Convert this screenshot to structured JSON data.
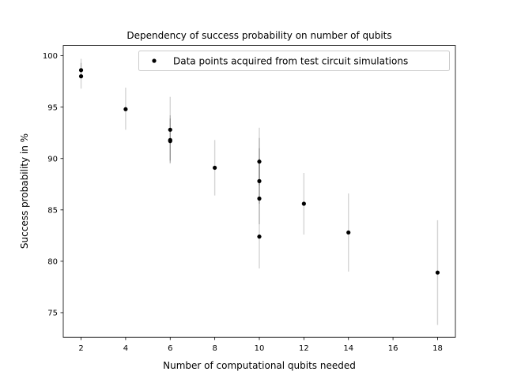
{
  "chart_data": {
    "type": "scatter",
    "title": "Dependency of success probability on number of qubits",
    "xlabel": "Number of computational qubits needed",
    "ylabel": "Success probability in %",
    "xlim": [
      1.2,
      18.8
    ],
    "ylim": [
      72.6,
      101.0
    ],
    "xticks": [
      2,
      4,
      6,
      8,
      10,
      12,
      14,
      16,
      18
    ],
    "yticks": [
      75,
      80,
      85,
      90,
      95,
      100
    ],
    "grid": false,
    "legend": {
      "position": "top-right",
      "label": "Data points acquired from test circuit simulations"
    },
    "colors": {
      "points": "#000000",
      "errorbars": "#d3d3d3",
      "errorbars_overlap": "#a9a9a9"
    },
    "series": [
      {
        "name": "Data points acquired from test circuit simulations",
        "points": [
          {
            "x": 2,
            "y": 98.6,
            "yerr": [
              98.0,
              99.3
            ]
          },
          {
            "x": 2,
            "y": 98.0,
            "yerr": [
              96.8,
              99.7
            ]
          },
          {
            "x": 4,
            "y": 94.8,
            "yerr": [
              92.8,
              96.9
            ]
          },
          {
            "x": 6,
            "y": 92.8,
            "yerr": [
              89.6,
              96.0
            ]
          },
          {
            "x": 6,
            "y": 91.8,
            "yerr": [
              89.8,
              93.9
            ]
          },
          {
            "x": 6,
            "y": 91.7,
            "yerr": [
              89.5,
              94.2
            ]
          },
          {
            "x": 8,
            "y": 89.1,
            "yerr": [
              86.4,
              91.8
            ]
          },
          {
            "x": 10,
            "y": 89.7,
            "yerr": [
              87.4,
              92.0
            ]
          },
          {
            "x": 10,
            "y": 87.8,
            "yerr": [
              85.6,
              90.0
            ]
          },
          {
            "x": 10,
            "y": 86.1,
            "yerr": [
              83.6,
              91.0
            ]
          },
          {
            "x": 10,
            "y": 82.4,
            "yerr": [
              79.3,
              93.0
            ]
          },
          {
            "x": 12,
            "y": 85.6,
            "yerr": [
              82.6,
              88.6
            ]
          },
          {
            "x": 14,
            "y": 82.8,
            "yerr": [
              79.0,
              86.6
            ]
          },
          {
            "x": 18,
            "y": 78.9,
            "yerr": [
              73.8,
              84.0
            ]
          }
        ]
      }
    ]
  }
}
